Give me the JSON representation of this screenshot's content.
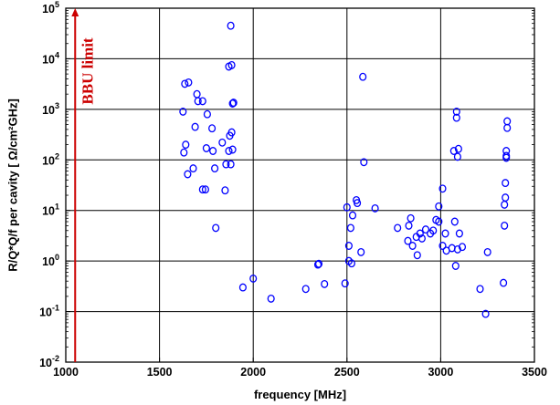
{
  "chart_data": {
    "type": "scatter",
    "xlabel": "frequency [MHz]",
    "ylabel": "R/Q*Q/f per cavity [ Ω/cm²GHz]",
    "xlim": [
      1000,
      3500
    ],
    "ylim": [
      0.01,
      100000
    ],
    "yscale": "log",
    "grid": true,
    "x_ticks": [
      "1000",
      "1500",
      "2000",
      "2500",
      "3000",
      "3500"
    ],
    "y_ticks": [
      "10^-2",
      "10^-1",
      "10^0",
      "10^1",
      "10^2",
      "10^3",
      "10^4",
      "10^5"
    ],
    "marker_color": "#0000ff",
    "annotation": {
      "text": "BBU limit",
      "x": 1050,
      "color": "#cc0000"
    },
    "points": [
      [
        1880,
        45000
      ],
      [
        1870,
        7000
      ],
      [
        1885,
        7500
      ],
      [
        1635,
        3200
      ],
      [
        1655,
        3400
      ],
      [
        1700,
        2000
      ],
      [
        1705,
        1450
      ],
      [
        1730,
        1450
      ],
      [
        1890,
        1300
      ],
      [
        1895,
        1350
      ],
      [
        1625,
        900
      ],
      [
        1755,
        800
      ],
      [
        1690,
        450
      ],
      [
        1780,
        420
      ],
      [
        1885,
        350
      ],
      [
        1875,
        300
      ],
      [
        1640,
        200
      ],
      [
        1630,
        140
      ],
      [
        1750,
        170
      ],
      [
        1785,
        150
      ],
      [
        1835,
        220
      ],
      [
        1870,
        150
      ],
      [
        1890,
        160
      ],
      [
        1880,
        82
      ],
      [
        1855,
        82
      ],
      [
        1680,
        68
      ],
      [
        1795,
        68
      ],
      [
        1650,
        52
      ],
      [
        1730,
        26
      ],
      [
        1745,
        26
      ],
      [
        1850,
        25
      ],
      [
        1800,
        4.5
      ],
      [
        2000,
        0.45
      ],
      [
        1945,
        0.3
      ],
      [
        2095,
        0.18
      ],
      [
        2280,
        0.28
      ],
      [
        2350,
        0.88
      ],
      [
        2345,
        0.85
      ],
      [
        2380,
        0.35
      ],
      [
        2490,
        0.36
      ],
      [
        2500,
        11.5
      ],
      [
        2510,
        2.0
      ],
      [
        2510,
        1.0
      ],
      [
        2525,
        0.9
      ],
      [
        2520,
        4.5
      ],
      [
        2530,
        8.0
      ],
      [
        2550,
        16
      ],
      [
        2555,
        14
      ],
      [
        2575,
        1.5
      ],
      [
        2585,
        4400
      ],
      [
        2590,
        90
      ],
      [
        2650,
        11
      ],
      [
        2770,
        4.5
      ],
      [
        2830,
        5.0
      ],
      [
        2825,
        2.5
      ],
      [
        2840,
        7.0
      ],
      [
        2850,
        2.0
      ],
      [
        2870,
        3.0
      ],
      [
        2875,
        1.3
      ],
      [
        2890,
        3.5
      ],
      [
        2900,
        2.8
      ],
      [
        2920,
        4.2
      ],
      [
        2945,
        3.5
      ],
      [
        2960,
        4.0
      ],
      [
        2975,
        6.5
      ],
      [
        2990,
        6.0
      ],
      [
        2990,
        12
      ],
      [
        3010,
        27
      ],
      [
        3010,
        2.0
      ],
      [
        3025,
        3.5
      ],
      [
        3030,
        1.6
      ],
      [
        3060,
        1.8
      ],
      [
        3075,
        6.0
      ],
      [
        3080,
        0.8
      ],
      [
        3090,
        1.7
      ],
      [
        3085,
        900
      ],
      [
        3085,
        680
      ],
      [
        3070,
        150
      ],
      [
        3095,
        165
      ],
      [
        3090,
        115
      ],
      [
        3100,
        3.5
      ],
      [
        3115,
        1.9
      ],
      [
        3210,
        0.28
      ],
      [
        3240,
        0.09
      ],
      [
        3250,
        1.5
      ],
      [
        3335,
        0.37
      ],
      [
        3340,
        5.0
      ],
      [
        3340,
        13
      ],
      [
        3345,
        18
      ],
      [
        3345,
        35
      ],
      [
        3350,
        110
      ],
      [
        3350,
        120
      ],
      [
        3350,
        150
      ],
      [
        3355,
        430
      ],
      [
        3355,
        580
      ]
    ]
  }
}
